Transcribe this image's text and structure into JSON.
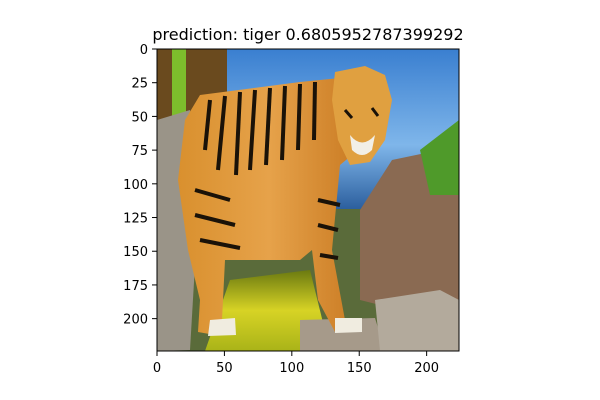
{
  "chart_data": {
    "type": "image",
    "title": "prediction: tiger 0.6805952787399292",
    "image_subject": "tiger",
    "x_range": [
      0,
      224
    ],
    "y_range": [
      0,
      224
    ],
    "y_inverted": true,
    "x_ticks": [
      0,
      50,
      100,
      150,
      200
    ],
    "y_ticks": [
      0,
      25,
      50,
      75,
      100,
      125,
      150,
      175,
      200
    ],
    "grid": false
  }
}
